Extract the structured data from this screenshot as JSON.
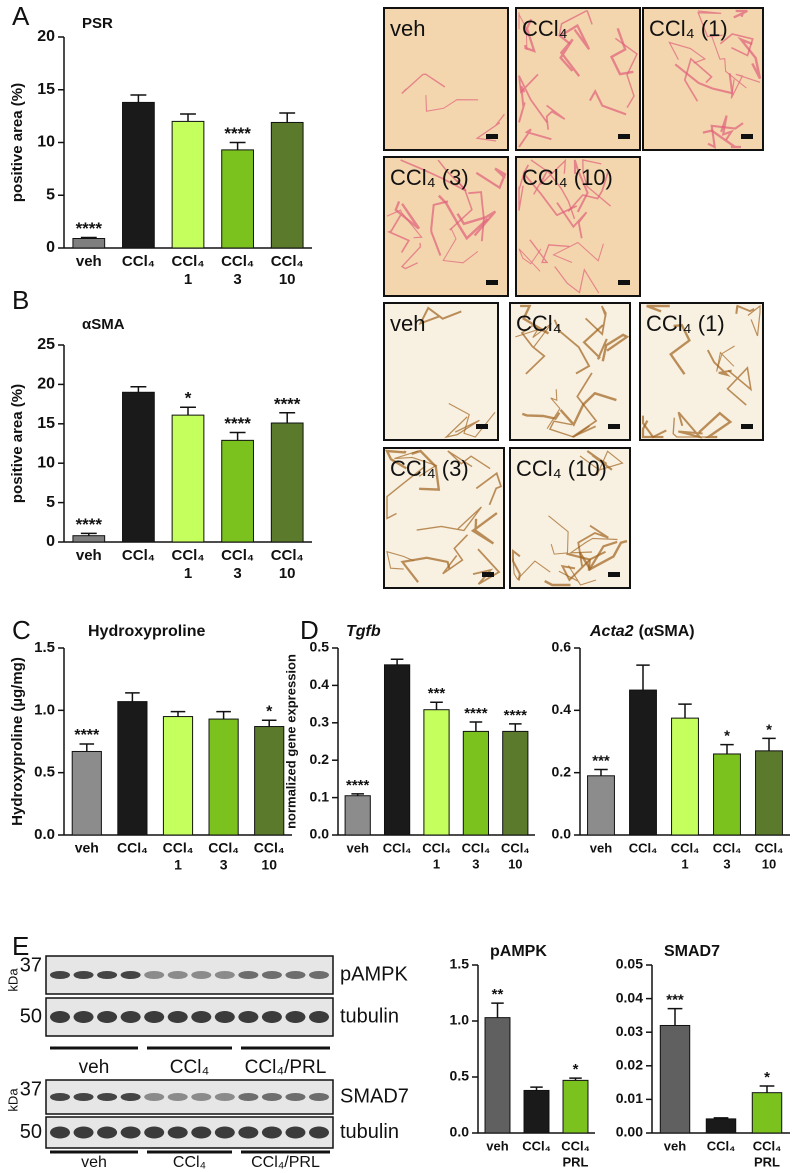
{
  "chart_data": [
    {
      "type": "bar",
      "title": "PSR",
      "y_label": "positive area (%)",
      "categories": [
        [
          "veh"
        ],
        [
          "CCl₄"
        ],
        [
          "CCl₄",
          "1"
        ],
        [
          "CCl₄",
          "3"
        ],
        [
          "CCl₄",
          "10"
        ]
      ],
      "values": [
        0.9,
        13.8,
        12.0,
        9.3,
        11.9
      ],
      "errors": [
        0.1,
        0.7,
        0.7,
        0.7,
        0.9
      ],
      "significance": [
        "****",
        null,
        null,
        "****",
        null
      ],
      "colors": [
        "#7f7f7f",
        "#1a1a1a",
        "#c4ff5e",
        "#7cc21e",
        "#5b7a2c"
      ],
      "ylim": [
        0,
        20
      ],
      "yticks": [
        0,
        5,
        10,
        15,
        20
      ]
    },
    {
      "type": "bar",
      "title": "αSMA",
      "y_label": "positive area (%)",
      "categories": [
        [
          "veh"
        ],
        [
          "CCl₄"
        ],
        [
          "CCl₄",
          "1"
        ],
        [
          "CCl₄",
          "3"
        ],
        [
          "CCl₄",
          "10"
        ]
      ],
      "values": [
        0.8,
        19.0,
        16.1,
        12.9,
        15.1
      ],
      "errors": [
        0.3,
        0.7,
        1.0,
        1.0,
        1.3
      ],
      "significance": [
        "****",
        null,
        "*",
        "****",
        "****"
      ],
      "colors": [
        "#7f7f7f",
        "#1a1a1a",
        "#c4ff5e",
        "#7cc21e",
        "#5b7a2c"
      ],
      "ylim": [
        0,
        25
      ],
      "yticks": [
        0,
        5,
        10,
        15,
        20,
        25
      ]
    },
    {
      "type": "bar",
      "title": "Hydroxyproline",
      "y_label": "Hydroxyproline (µg/mg)",
      "categories": [
        [
          "veh"
        ],
        [
          "CCl₄"
        ],
        [
          "CCl₄",
          "1"
        ],
        [
          "CCl₄",
          "3"
        ],
        [
          "CCl₄",
          "10"
        ]
      ],
      "values": [
        0.67,
        1.07,
        0.95,
        0.93,
        0.87
      ],
      "errors": [
        0.06,
        0.07,
        0.04,
        0.06,
        0.05
      ],
      "significance": [
        "****",
        null,
        null,
        null,
        "*"
      ],
      "colors": [
        "#8c8c8c",
        "#1a1a1a",
        "#c4ff5e",
        "#7cc21e",
        "#5b7a2c"
      ],
      "ylim": [
        0,
        1.5
      ],
      "yticks": [
        {
          "value": 0,
          "label": "0.0"
        },
        0.5,
        {
          "value": 1,
          "label": "1.0"
        },
        1.5
      ]
    },
    {
      "type": "bar",
      "title": "Tgfb",
      "y_label": "normalized gene expression",
      "categories": [
        [
          "veh"
        ],
        [
          "CCl₄"
        ],
        [
          "CCl₄",
          "1"
        ],
        [
          "CCl₄",
          "3"
        ],
        [
          "CCl₄",
          "10"
        ]
      ],
      "values": [
        0.105,
        0.455,
        0.335,
        0.277,
        0.277
      ],
      "errors": [
        0.005,
        0.015,
        0.02,
        0.025,
        0.02
      ],
      "significance": [
        "****",
        null,
        "***",
        "****",
        "****"
      ],
      "colors": [
        "#8c8c8c",
        "#1a1a1a",
        "#c4ff5e",
        "#7cc21e",
        "#5b7a2c"
      ],
      "ylim": [
        0,
        0.5
      ],
      "yticks": [
        {
          "value": 0,
          "label": "0.0"
        },
        0.1,
        0.2,
        0.3,
        0.4,
        0.5
      ]
    },
    {
      "type": "bar",
      "title": "Acta2",
      "subtitle": "(αSMA)",
      "categories": [
        [
          "veh"
        ],
        [
          "CCl₄"
        ],
        [
          "CCl₄",
          "1"
        ],
        [
          "CCl₄",
          "3"
        ],
        [
          "CCl₄",
          "10"
        ]
      ],
      "values": [
        0.19,
        0.465,
        0.375,
        0.26,
        0.27
      ],
      "errors": [
        0.02,
        0.08,
        0.045,
        0.03,
        0.04
      ],
      "significance": [
        "***",
        null,
        null,
        "*",
        "*"
      ],
      "colors": [
        "#8c8c8c",
        "#1a1a1a",
        "#c4ff5e",
        "#7cc21e",
        "#5b7a2c"
      ],
      "ylim": [
        0,
        0.6
      ],
      "yticks": [
        {
          "value": 0,
          "label": "0.0"
        },
        0.2,
        0.4,
        0.6
      ]
    },
    {
      "type": "bar",
      "title": "pAMPK",
      "categories": [
        [
          "veh"
        ],
        [
          "CCl₄"
        ],
        [
          "CCl₄",
          "PRL"
        ]
      ],
      "values": [
        1.03,
        0.38,
        0.47
      ],
      "errors": [
        0.13,
        0.03,
        0.02
      ],
      "significance": [
        "**",
        null,
        "*"
      ],
      "colors": [
        "#606060",
        "#1a1a1a",
        "#7cc21e"
      ],
      "ylim": [
        0,
        1.5
      ],
      "yticks": [
        {
          "value": 0,
          "label": "0.0"
        },
        0.5,
        {
          "value": 1,
          "label": "1.0"
        },
        1.5
      ]
    },
    {
      "type": "bar",
      "title": "SMAD7",
      "categories": [
        [
          "veh"
        ],
        [
          "CCl₄"
        ],
        [
          "CCl₄",
          "PRL"
        ]
      ],
      "values": [
        0.032,
        0.0042,
        0.012
      ],
      "errors": [
        0.005,
        0.0003,
        0.002
      ],
      "significance": [
        "***",
        null,
        "*"
      ],
      "colors": [
        "#606060",
        "#1a1a1a",
        "#7cc21e"
      ],
      "ylim": [
        0,
        0.05
      ],
      "yticks": [
        {
          "value": 0,
          "label": "0.00"
        },
        0.01,
        0.02,
        0.03,
        0.04,
        0.05
      ]
    }
  ],
  "panel_letters": [
    "A",
    "B",
    "C",
    "D",
    "E"
  ],
  "micrographs": [
    {
      "labels": [
        "veh",
        "CCl₄",
        "CCl₄ (1)",
        "CCl₄ (3)",
        "CCl₄ (10)"
      ]
    },
    {
      "labels": [
        "veh",
        "CCl₄",
        "CCl₄ (1)",
        "CCl₄ (3)",
        "CCl₄ (10)"
      ]
    }
  ],
  "blots": [
    {
      "unit": "kDa",
      "markers": [
        "37",
        "50"
      ],
      "bands": [
        "pAMPK",
        "tubulin"
      ],
      "groups": [
        "veh",
        "CCl₄",
        "CCl₄/PRL"
      ]
    },
    {
      "unit": "kDa",
      "markers": [
        "37",
        "50"
      ],
      "bands": [
        "SMAD7",
        "tubulin"
      ],
      "groups": [
        "veh",
        "CCl₄",
        "CCl₄/PRL"
      ]
    }
  ]
}
